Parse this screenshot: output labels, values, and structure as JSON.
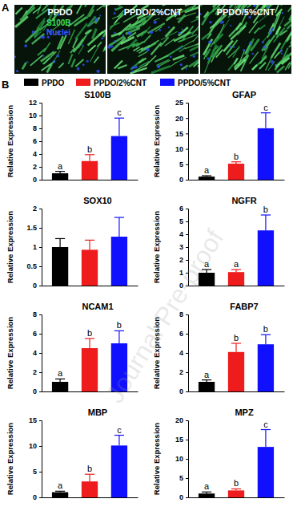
{
  "panel_labels": [
    "A",
    "B"
  ],
  "image_titles": [
    "PPDO",
    "PPDO/2%CNT",
    "PPDO/5%CNT"
  ],
  "stain_labels": [
    {
      "text": "S100B",
      "color": "#39e05a"
    },
    {
      "text": "Nuclei",
      "color": "#3a5cff"
    }
  ],
  "legend_entries": [
    {
      "name": "PPDO",
      "color": "#000000"
    },
    {
      "name": "PPDO/2%CNT",
      "color": "#ee1c1c"
    },
    {
      "name": "PPDO/5%CNT",
      "color": "#1010ff"
    }
  ],
  "watermark": "Journal Pre-proof",
  "chart_data": [
    {
      "type": "bar",
      "title": "S100B",
      "y_label": "Relative Expression",
      "categories": [
        null,
        null,
        null
      ],
      "values": [
        1.0,
        2.9,
        6.8
      ],
      "errors": [
        0.3,
        1.0,
        2.8
      ],
      "colors": [
        "#000000",
        "#ee1c1c",
        "#1010ff"
      ],
      "annotations": [
        "a",
        "b",
        "c"
      ],
      "ylim": [
        0,
        12
      ],
      "yticks": [
        0,
        2,
        4,
        6,
        8,
        10,
        12
      ]
    },
    {
      "type": "bar",
      "title": "GFAP",
      "y_label": "Relative Expression",
      "categories": [
        null,
        null,
        null
      ],
      "values": [
        1.0,
        5.2,
        16.7
      ],
      "errors": [
        0.3,
        0.6,
        5.0
      ],
      "colors": [
        "#000000",
        "#ee1c1c",
        "#1010ff"
      ],
      "annotations": [
        "a",
        "b",
        "c"
      ],
      "ylim": [
        0,
        25
      ],
      "yticks": [
        0,
        5,
        10,
        15,
        20,
        25
      ]
    },
    {
      "type": "bar",
      "title": "SOX10",
      "y_label": "Relative Expression",
      "categories": [
        null,
        null,
        null
      ],
      "values": [
        1.0,
        0.93,
        1.27
      ],
      "errors": [
        0.22,
        0.25,
        0.5
      ],
      "colors": [
        "#000000",
        "#ee1c1c",
        "#1010ff"
      ],
      "ylim": [
        0,
        2
      ],
      "yticks": [
        0,
        0.5,
        1,
        1.5,
        2
      ]
    },
    {
      "type": "bar",
      "title": "NGFR",
      "y_label": "Relative Expression",
      "categories": [
        null,
        null,
        null
      ],
      "values": [
        1.0,
        1.05,
        4.3
      ],
      "errors": [
        0.25,
        0.2,
        1.2
      ],
      "colors": [
        "#000000",
        "#ee1c1c",
        "#1010ff"
      ],
      "annotations": [
        "a",
        "a",
        "b"
      ],
      "ylim": [
        0,
        6
      ],
      "yticks": [
        0,
        1,
        2,
        3,
        4,
        5,
        6
      ]
    },
    {
      "type": "bar",
      "title": "NCAM1",
      "y_label": "Relative Expression",
      "categories": [
        null,
        null,
        null
      ],
      "values": [
        1.0,
        4.5,
        5.0
      ],
      "errors": [
        0.3,
        1.0,
        1.3
      ],
      "colors": [
        "#000000",
        "#ee1c1c",
        "#1010ff"
      ],
      "annotations": [
        "a",
        "b",
        "b"
      ],
      "ylim": [
        0,
        8
      ],
      "yticks": [
        0,
        2,
        4,
        6,
        8
      ]
    },
    {
      "type": "bar",
      "title": "FABP7",
      "y_label": "Relative Expression",
      "categories": [
        null,
        null,
        null
      ],
      "values": [
        1.0,
        4.1,
        4.9
      ],
      "errors": [
        0.2,
        0.9,
        1.0
      ],
      "colors": [
        "#000000",
        "#ee1c1c",
        "#1010ff"
      ],
      "annotations": [
        "a",
        "b",
        "b"
      ],
      "ylim": [
        0,
        8
      ],
      "yticks": [
        0,
        2,
        4,
        6,
        8
      ]
    },
    {
      "type": "bar",
      "title": "MBP",
      "y_label": "Relative Expression",
      "categories": [
        null,
        null,
        null
      ],
      "values": [
        1.0,
        3.1,
        10.1
      ],
      "errors": [
        0.2,
        1.4,
        2.0
      ],
      "colors": [
        "#000000",
        "#ee1c1c",
        "#1010ff"
      ],
      "annotations": [
        "a",
        "b",
        "c"
      ],
      "ylim": [
        0,
        15
      ],
      "yticks": [
        0,
        5,
        10,
        15
      ]
    },
    {
      "type": "bar",
      "title": "MPZ",
      "y_label": "Relative Expression",
      "categories": [
        null,
        null,
        null
      ],
      "values": [
        1.0,
        1.8,
        13.1
      ],
      "errors": [
        0.4,
        0.4,
        4.5
      ],
      "colors": [
        "#000000",
        "#ee1c1c",
        "#1010ff"
      ],
      "annotations": [
        "a",
        "b",
        "c"
      ],
      "ylim": [
        0,
        20
      ],
      "yticks": [
        0,
        5,
        10,
        15,
        20
      ]
    }
  ]
}
